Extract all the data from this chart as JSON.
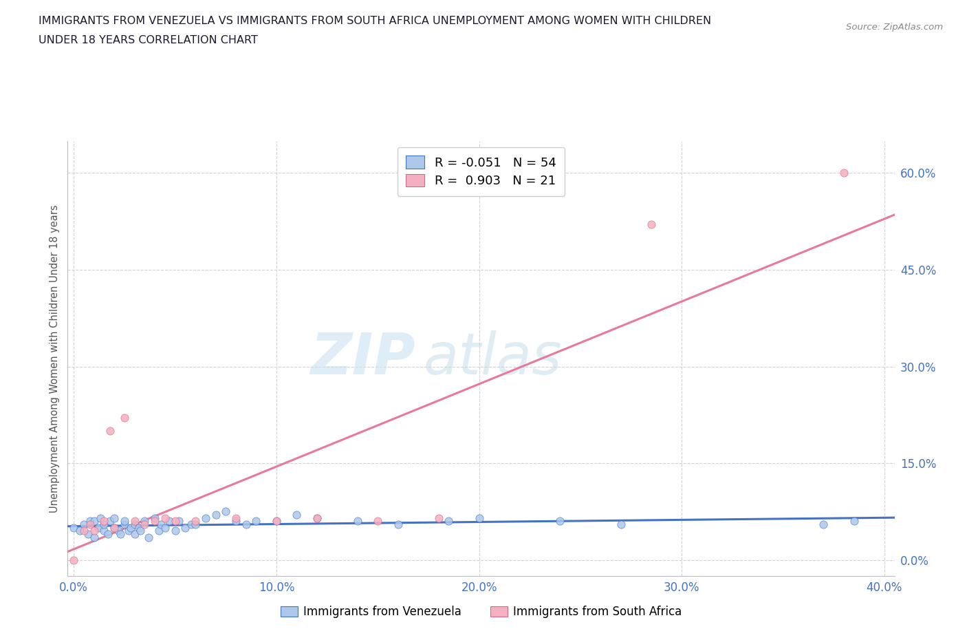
{
  "title_line1": "IMMIGRANTS FROM VENEZUELA VS IMMIGRANTS FROM SOUTH AFRICA UNEMPLOYMENT AMONG WOMEN WITH CHILDREN",
  "title_line2": "UNDER 18 YEARS CORRELATION CHART",
  "source": "Source: ZipAtlas.com",
  "ylabel": "Unemployment Among Women with Children Under 18 years",
  "xlim": [
    -0.003,
    0.405
  ],
  "ylim": [
    -0.025,
    0.65
  ],
  "xticks": [
    0.0,
    0.1,
    0.2,
    0.3,
    0.4
  ],
  "yticks": [
    0.0,
    0.15,
    0.3,
    0.45,
    0.6
  ],
  "ytick_labels": [
    "0.0%",
    "15.0%",
    "30.0%",
    "45.0%",
    "60.0%"
  ],
  "xtick_labels": [
    "0.0%",
    "10.0%",
    "20.0%",
    "30.0%",
    "40.0%"
  ],
  "r_venezuela": -0.051,
  "n_venezuela": 54,
  "r_south_africa": 0.903,
  "n_south_africa": 21,
  "color_venezuela": "#adc8ea",
  "color_south_africa": "#f4b0c0",
  "line_color_venezuela": "#4472c4",
  "line_color_south_africa": "#e8799a",
  "watermark_zip": "ZIP",
  "watermark_atlas": "atlas",
  "legend_label_venezuela": "Immigrants from Venezuela",
  "legend_label_south_africa": "Immigrants from South Africa",
  "venezuela_x": [
    0.0,
    0.003,
    0.005,
    0.007,
    0.008,
    0.01,
    0.01,
    0.012,
    0.013,
    0.015,
    0.015,
    0.017,
    0.018,
    0.02,
    0.02,
    0.022,
    0.023,
    0.025,
    0.025,
    0.027,
    0.028,
    0.03,
    0.03,
    0.032,
    0.033,
    0.035,
    0.037,
    0.04,
    0.042,
    0.043,
    0.045,
    0.047,
    0.05,
    0.052,
    0.055,
    0.058,
    0.06,
    0.065,
    0.07,
    0.075,
    0.08,
    0.085,
    0.09,
    0.1,
    0.11,
    0.12,
    0.14,
    0.16,
    0.185,
    0.2,
    0.24,
    0.27,
    0.37,
    0.385
  ],
  "venezuela_y": [
    0.05,
    0.045,
    0.055,
    0.04,
    0.06,
    0.035,
    0.06,
    0.05,
    0.065,
    0.045,
    0.055,
    0.04,
    0.06,
    0.05,
    0.065,
    0.045,
    0.04,
    0.055,
    0.06,
    0.045,
    0.05,
    0.04,
    0.055,
    0.05,
    0.045,
    0.06,
    0.035,
    0.065,
    0.045,
    0.055,
    0.05,
    0.06,
    0.045,
    0.06,
    0.05,
    0.055,
    0.055,
    0.065,
    0.07,
    0.075,
    0.06,
    0.055,
    0.06,
    0.06,
    0.07,
    0.065,
    0.06,
    0.055,
    0.06,
    0.065,
    0.06,
    0.055,
    0.055,
    0.06
  ],
  "south_africa_x": [
    0.0,
    0.005,
    0.008,
    0.01,
    0.015,
    0.018,
    0.02,
    0.025,
    0.03,
    0.035,
    0.04,
    0.045,
    0.05,
    0.06,
    0.08,
    0.1,
    0.12,
    0.15,
    0.18,
    0.285,
    0.38
  ],
  "south_africa_y": [
    0.0,
    0.045,
    0.055,
    0.045,
    0.06,
    0.2,
    0.05,
    0.22,
    0.06,
    0.055,
    0.06,
    0.065,
    0.06,
    0.06,
    0.065,
    0.06,
    0.065,
    0.06,
    0.065,
    0.52,
    0.6
  ]
}
